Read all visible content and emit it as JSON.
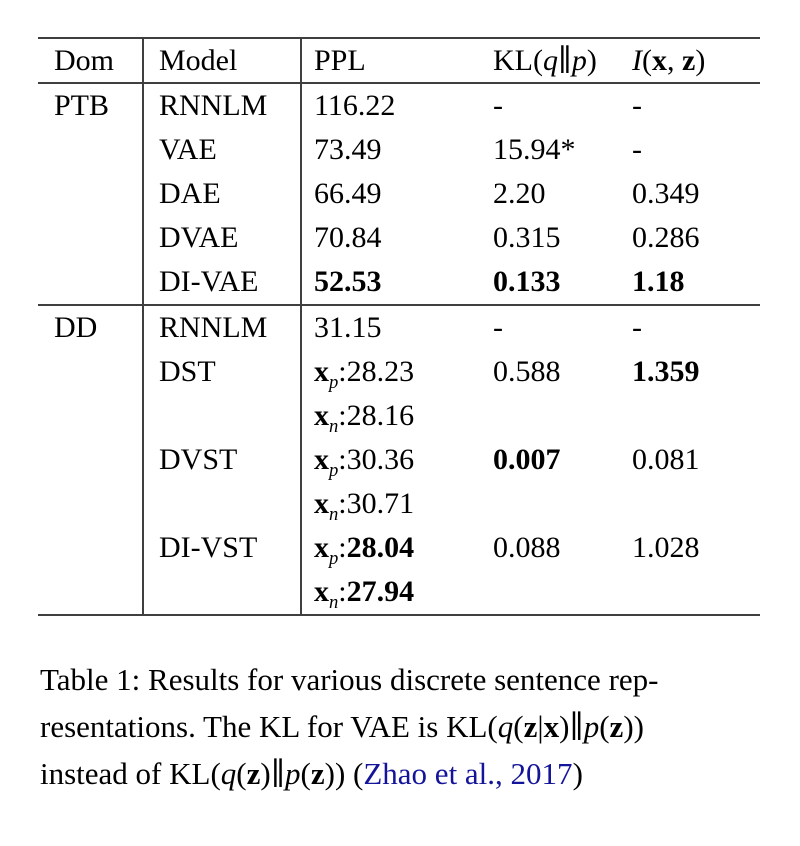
{
  "colors": {
    "background": "#ffffff",
    "text": "#000000",
    "rule": "#3f3f3f",
    "citation_link": "#14149a"
  },
  "table": {
    "header": {
      "dom": [
        {
          "t": "Dom"
        }
      ],
      "model": [
        {
          "t": "Model"
        }
      ],
      "ppl": [
        {
          "t": "PPL"
        }
      ],
      "kl": [
        {
          "t": "KL("
        },
        {
          "t": "q",
          "s": "it"
        },
        {
          "t": "∥"
        },
        {
          "t": "p",
          "s": "it"
        },
        {
          "t": ")"
        }
      ],
      "i": [
        {
          "t": "I",
          "s": "it"
        },
        {
          "t": "("
        },
        {
          "t": "x",
          "s": "bf"
        },
        {
          "t": ", "
        },
        {
          "t": "z",
          "s": "bf"
        },
        {
          "t": ")"
        }
      ]
    },
    "rows": [
      {
        "dom": [
          {
            "t": "PTB"
          }
        ],
        "model": [
          {
            "t": "RNNLM"
          }
        ],
        "ppl": [
          {
            "t": "116.22"
          }
        ],
        "kl": [
          {
            "t": "-"
          }
        ],
        "i": [
          {
            "t": "-"
          }
        ]
      },
      {
        "dom": [],
        "model": [
          {
            "t": "VAE"
          }
        ],
        "ppl": [
          {
            "t": "73.49"
          }
        ],
        "kl": [
          {
            "t": "15.94*"
          }
        ],
        "i": [
          {
            "t": "-"
          }
        ]
      },
      {
        "dom": [],
        "model": [
          {
            "t": "DAE"
          }
        ],
        "ppl": [
          {
            "t": "66.49"
          }
        ],
        "kl": [
          {
            "t": "2.20"
          }
        ],
        "i": [
          {
            "t": "0.349"
          }
        ]
      },
      {
        "dom": [],
        "model": [
          {
            "t": "DVAE"
          }
        ],
        "ppl": [
          {
            "t": "70.84"
          }
        ],
        "kl": [
          {
            "t": "0.315"
          }
        ],
        "i": [
          {
            "t": "0.286"
          }
        ]
      },
      {
        "dom": [],
        "model": [
          {
            "t": "DI-VAE"
          }
        ],
        "ppl": [
          {
            "t": "52.53",
            "s": "bf"
          }
        ],
        "kl": [
          {
            "t": "0.133",
            "s": "bf"
          }
        ],
        "i": [
          {
            "t": "1.18",
            "s": "bf"
          }
        ]
      },
      {
        "section_start": true,
        "dom": [
          {
            "t": "DD"
          }
        ],
        "model": [
          {
            "t": "RNNLM"
          }
        ],
        "ppl": [
          {
            "t": "31.15"
          }
        ],
        "kl": [
          {
            "t": "-"
          }
        ],
        "i": [
          {
            "t": "-"
          }
        ]
      },
      {
        "dom": [],
        "model": [
          {
            "t": "DST"
          }
        ],
        "ppl": [
          {
            "t": "x",
            "s": "bf"
          },
          {
            "t": "p",
            "s": "it",
            "sub": true
          },
          {
            "t": ":28.23"
          }
        ],
        "kl": [
          {
            "t": "0.588"
          }
        ],
        "i": [
          {
            "t": "1.359",
            "s": "bf"
          }
        ]
      },
      {
        "dom": [],
        "model": [],
        "ppl": [
          {
            "t": "x",
            "s": "bf"
          },
          {
            "t": "n",
            "s": "it",
            "sub": true
          },
          {
            "t": ":28.16"
          }
        ],
        "kl": [],
        "i": []
      },
      {
        "dom": [],
        "model": [
          {
            "t": "DVST"
          }
        ],
        "ppl": [
          {
            "t": "x",
            "s": "bf"
          },
          {
            "t": "p",
            "s": "it",
            "sub": true
          },
          {
            "t": ":30.36"
          }
        ],
        "kl": [
          {
            "t": "0.007",
            "s": "bf"
          }
        ],
        "i": [
          {
            "t": "0.081"
          }
        ]
      },
      {
        "dom": [],
        "model": [],
        "ppl": [
          {
            "t": "x",
            "s": "bf"
          },
          {
            "t": "n",
            "s": "it",
            "sub": true
          },
          {
            "t": ":30.71"
          }
        ],
        "kl": [],
        "i": []
      },
      {
        "dom": [],
        "model": [
          {
            "t": "DI-VST"
          }
        ],
        "ppl": [
          {
            "t": "x",
            "s": "bf"
          },
          {
            "t": "p",
            "s": "it",
            "sub": true
          },
          {
            "t": ":"
          },
          {
            "t": "28.04",
            "s": "bf"
          }
        ],
        "kl": [
          {
            "t": "0.088"
          }
        ],
        "i": [
          {
            "t": "1.028"
          }
        ]
      },
      {
        "dom": [],
        "model": [],
        "ppl": [
          {
            "t": "x",
            "s": "bf"
          },
          {
            "t": "n",
            "s": "it",
            "sub": true
          },
          {
            "t": ":"
          },
          {
            "t": "27.94",
            "s": "bf"
          }
        ],
        "kl": [],
        "i": []
      }
    ]
  },
  "caption": {
    "lines": [
      [
        {
          "t": "Table 1: Results for various discrete sentence rep-"
        }
      ],
      [
        {
          "t": "resentations. The KL for VAE is KL("
        },
        {
          "t": "q",
          "s": "it"
        },
        {
          "t": "("
        },
        {
          "t": "z",
          "s": "bf"
        },
        {
          "t": "|"
        },
        {
          "t": "x",
          "s": "bf"
        },
        {
          "t": ")∥"
        },
        {
          "t": "p",
          "s": "it"
        },
        {
          "t": "("
        },
        {
          "t": "z",
          "s": "bf"
        },
        {
          "t": "))"
        }
      ],
      [
        {
          "t": "instead of KL("
        },
        {
          "t": "q",
          "s": "it"
        },
        {
          "t": "("
        },
        {
          "t": "z",
          "s": "bf"
        },
        {
          "t": ")∥"
        },
        {
          "t": "p",
          "s": "it"
        },
        {
          "t": "("
        },
        {
          "t": "z",
          "s": "bf"
        },
        {
          "t": ")) ("
        },
        {
          "t": "Zhao et al., 2017",
          "s": "link"
        },
        {
          "t": ")"
        }
      ]
    ]
  }
}
